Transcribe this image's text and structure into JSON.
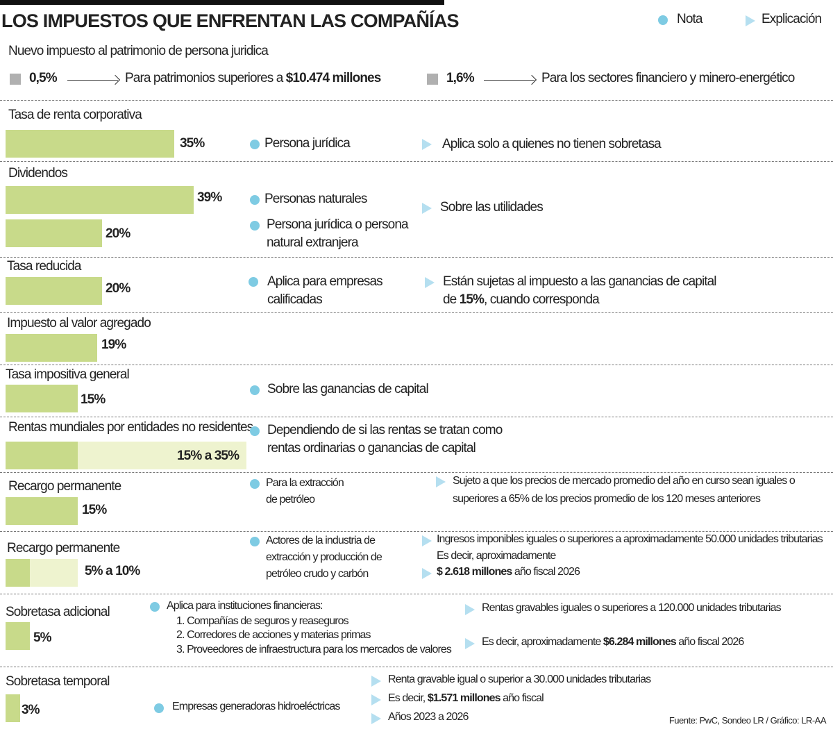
{
  "title": "LOS IMPUESTOS QUE ENFRENTAN LAS COMPAÑÍAS",
  "legend": {
    "note": "Nota",
    "explanation": "Explicación",
    "note_color": "#7ecbe3",
    "explanation_color": "#b5dff0"
  },
  "wealth_tax": {
    "heading": "Nuevo impuesto al patrimonio de persona juridica",
    "items": [
      {
        "rate": "0,5%",
        "text": "Para patrimonios superiores a ",
        "bold": "$10.474 millones"
      },
      {
        "rate": "1,6%",
        "text": "Para los sectores financiero y minero-energético",
        "bold": ""
      }
    ]
  },
  "colors": {
    "bar": "#c8da8a",
    "bar_range": "#eef3cf"
  },
  "rows": [
    {
      "label": "Tasa de renta corporativa",
      "value": "35%",
      "note": "Persona jurídica",
      "expl": "Aplica solo a quienes no tienen sobretasa"
    },
    {
      "label": "Dividendos",
      "value": "39%",
      "note": "Personas naturales",
      "value2": "20%",
      "note2a": "Persona jurídica o persona",
      "note2b": "natural extranjera",
      "expl": "Sobre las utilidades"
    },
    {
      "label": "Tasa reducida",
      "value": "20%",
      "note_a": "Aplica para empresas",
      "note_b": "calificadas",
      "expl_a": "Están sujetas al impuesto a las ganancias de capital",
      "expl_b_pre": "de ",
      "expl_b_bold": "15%",
      "expl_b_post": ", cuando corresponda"
    },
    {
      "label": "Impuesto al valor agregado",
      "value": "19%"
    },
    {
      "label": "Tasa impositiva general",
      "value": "15%",
      "note": "Sobre las ganancias de capital"
    },
    {
      "label": "Rentas mundiales por entidades no residentes",
      "value": "15% a 35%",
      "note_a": "Dependiendo de si las rentas se tratan como",
      "note_b": "rentas ordinarias o ganancias de capital"
    },
    {
      "label": "Recargo permanente",
      "value": "15%",
      "note_a": "Para la extracción",
      "note_b": "de petróleo",
      "expl_a": "Sujeto a que los precios de mercado promedio del año en curso sean iguales o",
      "expl_b": "superiores a 65% de los precios promedio de los 120 meses anteriores"
    },
    {
      "label": "Recargo permanente",
      "value": "5% a 10%",
      "note_a": "Actores de la industria de",
      "note_b": "extracción y producción de",
      "note_c": "petróleo crudo y carbón",
      "expl_a": "Ingresos imponibles iguales o superiores a aproximadamente 50.000 unidades tributarias",
      "expl_b": "Es decir, aproximadamente",
      "expl_c_bold": "$ 2.618 millones",
      "expl_c": " año fiscal 2026"
    },
    {
      "label": "Sobretasa adicional",
      "value": "5%",
      "note_a": "Aplica para instituciones financieras:",
      "note_b": "1. Compañías de seguros y reaseguros",
      "note_c": "2. Corredores de acciones y materias primas",
      "note_d": "3. Proveedores de infraestructura para los mercados de valores",
      "expl_a": "Rentas gravables iguales o superiores a 120.000 unidades tributarias",
      "expl_b": "Es decir, aproximadamente ",
      "expl_b_bold": "$6.284 millones",
      "expl_b_post": " año fiscal 2026"
    },
    {
      "label": "Sobretasa temporal",
      "value": "3%",
      "note": "Empresas generadoras hidroeléctricas",
      "expl_a": "Renta gravable igual o superior a 30.000 unidades tributarias",
      "expl_b": "Es decir, ",
      "expl_b_bold": "$1.571 millones",
      "expl_b_post": " año fiscal",
      "expl_c": "Años 2023 a 2026"
    }
  ],
  "source": "Fuente: PwC, Sondeo LR / Gráfico: LR-AA",
  "chart_data": {
    "type": "bar",
    "orientation": "horizontal",
    "unit": "%",
    "categories": [
      "Tasa de renta corporativa",
      "Dividendos (personas naturales)",
      "Dividendos (persona jurídica o persona natural extranjera)",
      "Tasa reducida",
      "Impuesto al valor agregado",
      "Tasa impositiva general",
      "Rentas mundiales por entidades no residentes",
      "Recargo permanente (extracción de petróleo)",
      "Recargo permanente (industria de extracción)",
      "Sobretasa adicional",
      "Sobretasa temporal"
    ],
    "values": [
      35,
      39,
      20,
      20,
      19,
      15,
      [
        15,
        35
      ],
      15,
      [
        5,
        10
      ],
      5,
      3
    ]
  }
}
